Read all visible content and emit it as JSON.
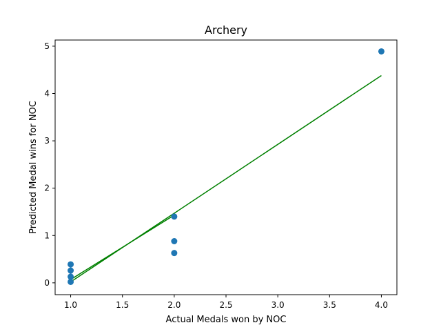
{
  "chart_data": {
    "type": "scatter",
    "title": "Archery",
    "xlabel": "Actual Medals won by NOC",
    "ylabel": "Predicted Medal wins for NOC",
    "xlim": [
      0.85,
      4.15
    ],
    "ylim": [
      -0.25,
      5.13
    ],
    "xticks": [
      1.0,
      1.5,
      2.0,
      2.5,
      3.0,
      3.5,
      4.0
    ],
    "xtick_labels": [
      "1.0",
      "1.5",
      "2.0",
      "2.5",
      "3.0",
      "3.5",
      "4.0"
    ],
    "yticks": [
      0,
      1,
      2,
      3,
      4,
      5
    ],
    "ytick_labels": [
      "0",
      "1",
      "2",
      "3",
      "4",
      "5"
    ],
    "grid": false,
    "series": [
      {
        "kind": "scatter",
        "color": "#1f77b4",
        "points": [
          {
            "x": 1.0,
            "y": 0.39
          },
          {
            "x": 1.0,
            "y": 0.26
          },
          {
            "x": 1.0,
            "y": 0.13
          },
          {
            "x": 1.0,
            "y": 0.02
          },
          {
            "x": 2.0,
            "y": 1.4
          },
          {
            "x": 2.0,
            "y": 0.88
          },
          {
            "x": 2.0,
            "y": 0.63
          },
          {
            "x": 4.0,
            "y": 4.89
          }
        ]
      },
      {
        "kind": "line",
        "color": "#008000",
        "points": [
          {
            "x": 1.0,
            "y": 0.02
          },
          {
            "x": 2.0,
            "y": 1.47
          },
          {
            "x": 4.0,
            "y": 4.38
          }
        ]
      },
      {
        "kind": "line",
        "color": "#008000",
        "points": [
          {
            "x": 1.0,
            "y": 0.07
          },
          {
            "x": 2.0,
            "y": 1.43
          }
        ]
      }
    ]
  }
}
